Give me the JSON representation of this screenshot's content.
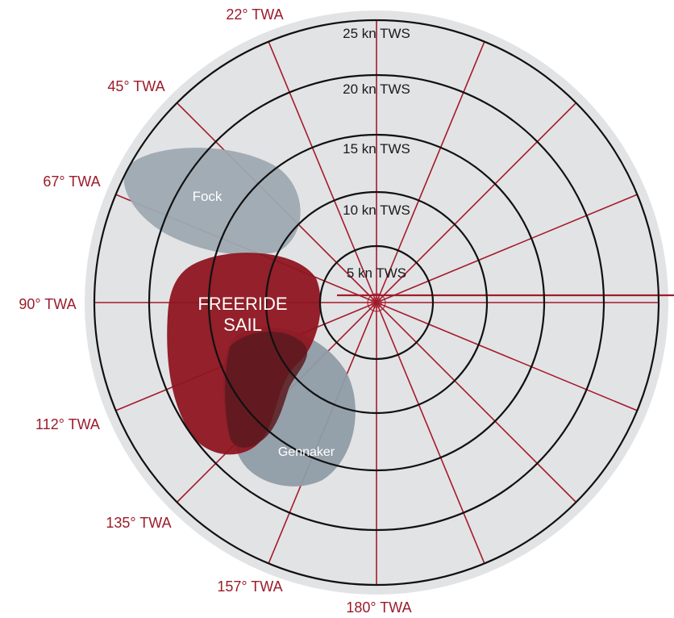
{
  "diagram": {
    "colors": {
      "background_disc": "#e2e3e5",
      "rings": "#111111",
      "angle_lines": "#a31b2b",
      "twa_label": "#9b1b2a",
      "fock_fill": "#9ea9b1",
      "gennaker_fill": "#8f9ca6",
      "freeride_fill": "#8e1520",
      "overlap_fill": "#5a1a20"
    },
    "tws_labels": [
      "5 kn TWS",
      "10 kn TWS",
      "15 kn TWS",
      "20 kn TWS",
      "25 kn TWS"
    ],
    "twa_labels": [
      {
        "angle": 22,
        "text": "22° TWA"
      },
      {
        "angle": 45,
        "text": "45° TWA"
      },
      {
        "angle": 67,
        "text": "67° TWA"
      },
      {
        "angle": 90,
        "text": "90° TWA"
      },
      {
        "angle": 112,
        "text": "112° TWA"
      },
      {
        "angle": 135,
        "text": "135° TWA"
      },
      {
        "angle": 157,
        "text": "157° TWA"
      },
      {
        "angle": 180,
        "text": "180° TWA"
      }
    ],
    "sails": {
      "fock": "Fock",
      "gennaker": "Gennaker",
      "freeride_line1": "FREERIDE",
      "freeride_line2": "SAIL"
    }
  }
}
